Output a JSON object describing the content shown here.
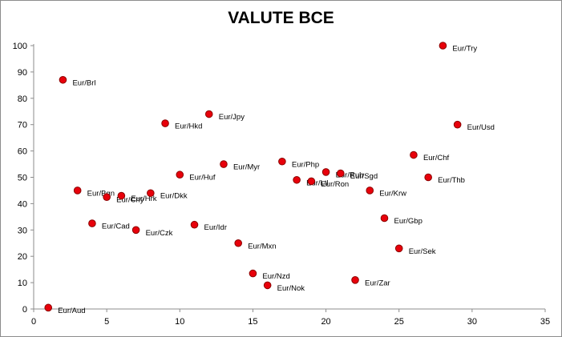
{
  "chart_data": {
    "type": "scatter",
    "title": "VALUTE BCE",
    "xlabel": "",
    "ylabel": "",
    "xlim": [
      0,
      35
    ],
    "ylim": [
      0,
      100
    ],
    "x_ticks": [
      0,
      5,
      10,
      15,
      20,
      25,
      30,
      35
    ],
    "y_ticks": [
      0,
      10,
      20,
      30,
      40,
      50,
      60,
      70,
      80,
      90,
      100
    ],
    "grid": false,
    "legend": "none",
    "marker_color": "#e8000b",
    "marker_edge_color": "#8b0000",
    "points": [
      {
        "label": "Eur/Aud",
        "x": 1,
        "y": 0.5
      },
      {
        "label": "Eur/Brl",
        "x": 2,
        "y": 87
      },
      {
        "label": "Eur/Bgn",
        "x": 3,
        "y": 45
      },
      {
        "label": "Eur/Cad",
        "x": 4,
        "y": 32.5
      },
      {
        "label": "Eur/Cny",
        "x": 5,
        "y": 42.5
      },
      {
        "label": "Eur/Hrk",
        "x": 6,
        "y": 43
      },
      {
        "label": "Eur/Czk",
        "x": 7,
        "y": 30
      },
      {
        "label": "Eur/Dkk",
        "x": 8,
        "y": 44
      },
      {
        "label": "Eur/Hkd",
        "x": 9,
        "y": 70.5
      },
      {
        "label": "Eur/Huf",
        "x": 10,
        "y": 51
      },
      {
        "label": "Eur/Idr",
        "x": 11,
        "y": 32
      },
      {
        "label": "Eur/Jpy",
        "x": 12,
        "y": 74
      },
      {
        "label": "Eur/Myr",
        "x": 13,
        "y": 55
      },
      {
        "label": "Eur/Mxn",
        "x": 14,
        "y": 25
      },
      {
        "label": "Eur/Nzd",
        "x": 15,
        "y": 13.5
      },
      {
        "label": "Eur/Nok",
        "x": 16,
        "y": 9
      },
      {
        "label": "Eur/Php",
        "x": 17,
        "y": 56
      },
      {
        "label": "Eur/Ltl",
        "x": 18,
        "y": 49
      },
      {
        "label": "Eur/Ron",
        "x": 19,
        "y": 48.5
      },
      {
        "label": "Eur/Rub",
        "x": 20,
        "y": 52
      },
      {
        "label": "Eur/Sgd",
        "x": 21,
        "y": 51.5
      },
      {
        "label": "Eur/Zar",
        "x": 22,
        "y": 11
      },
      {
        "label": "Eur/Krw",
        "x": 23,
        "y": 45
      },
      {
        "label": "Eur/Gbp",
        "x": 24,
        "y": 34.5
      },
      {
        "label": "Eur/Sek",
        "x": 25,
        "y": 23
      },
      {
        "label": "Eur/Chf",
        "x": 26,
        "y": 58.5
      },
      {
        "label": "Eur/Thb",
        "x": 27,
        "y": 50
      },
      {
        "label": "Eur/Try",
        "x": 28,
        "y": 100
      },
      {
        "label": "Eur/Usd",
        "x": 29,
        "y": 70
      }
    ]
  }
}
